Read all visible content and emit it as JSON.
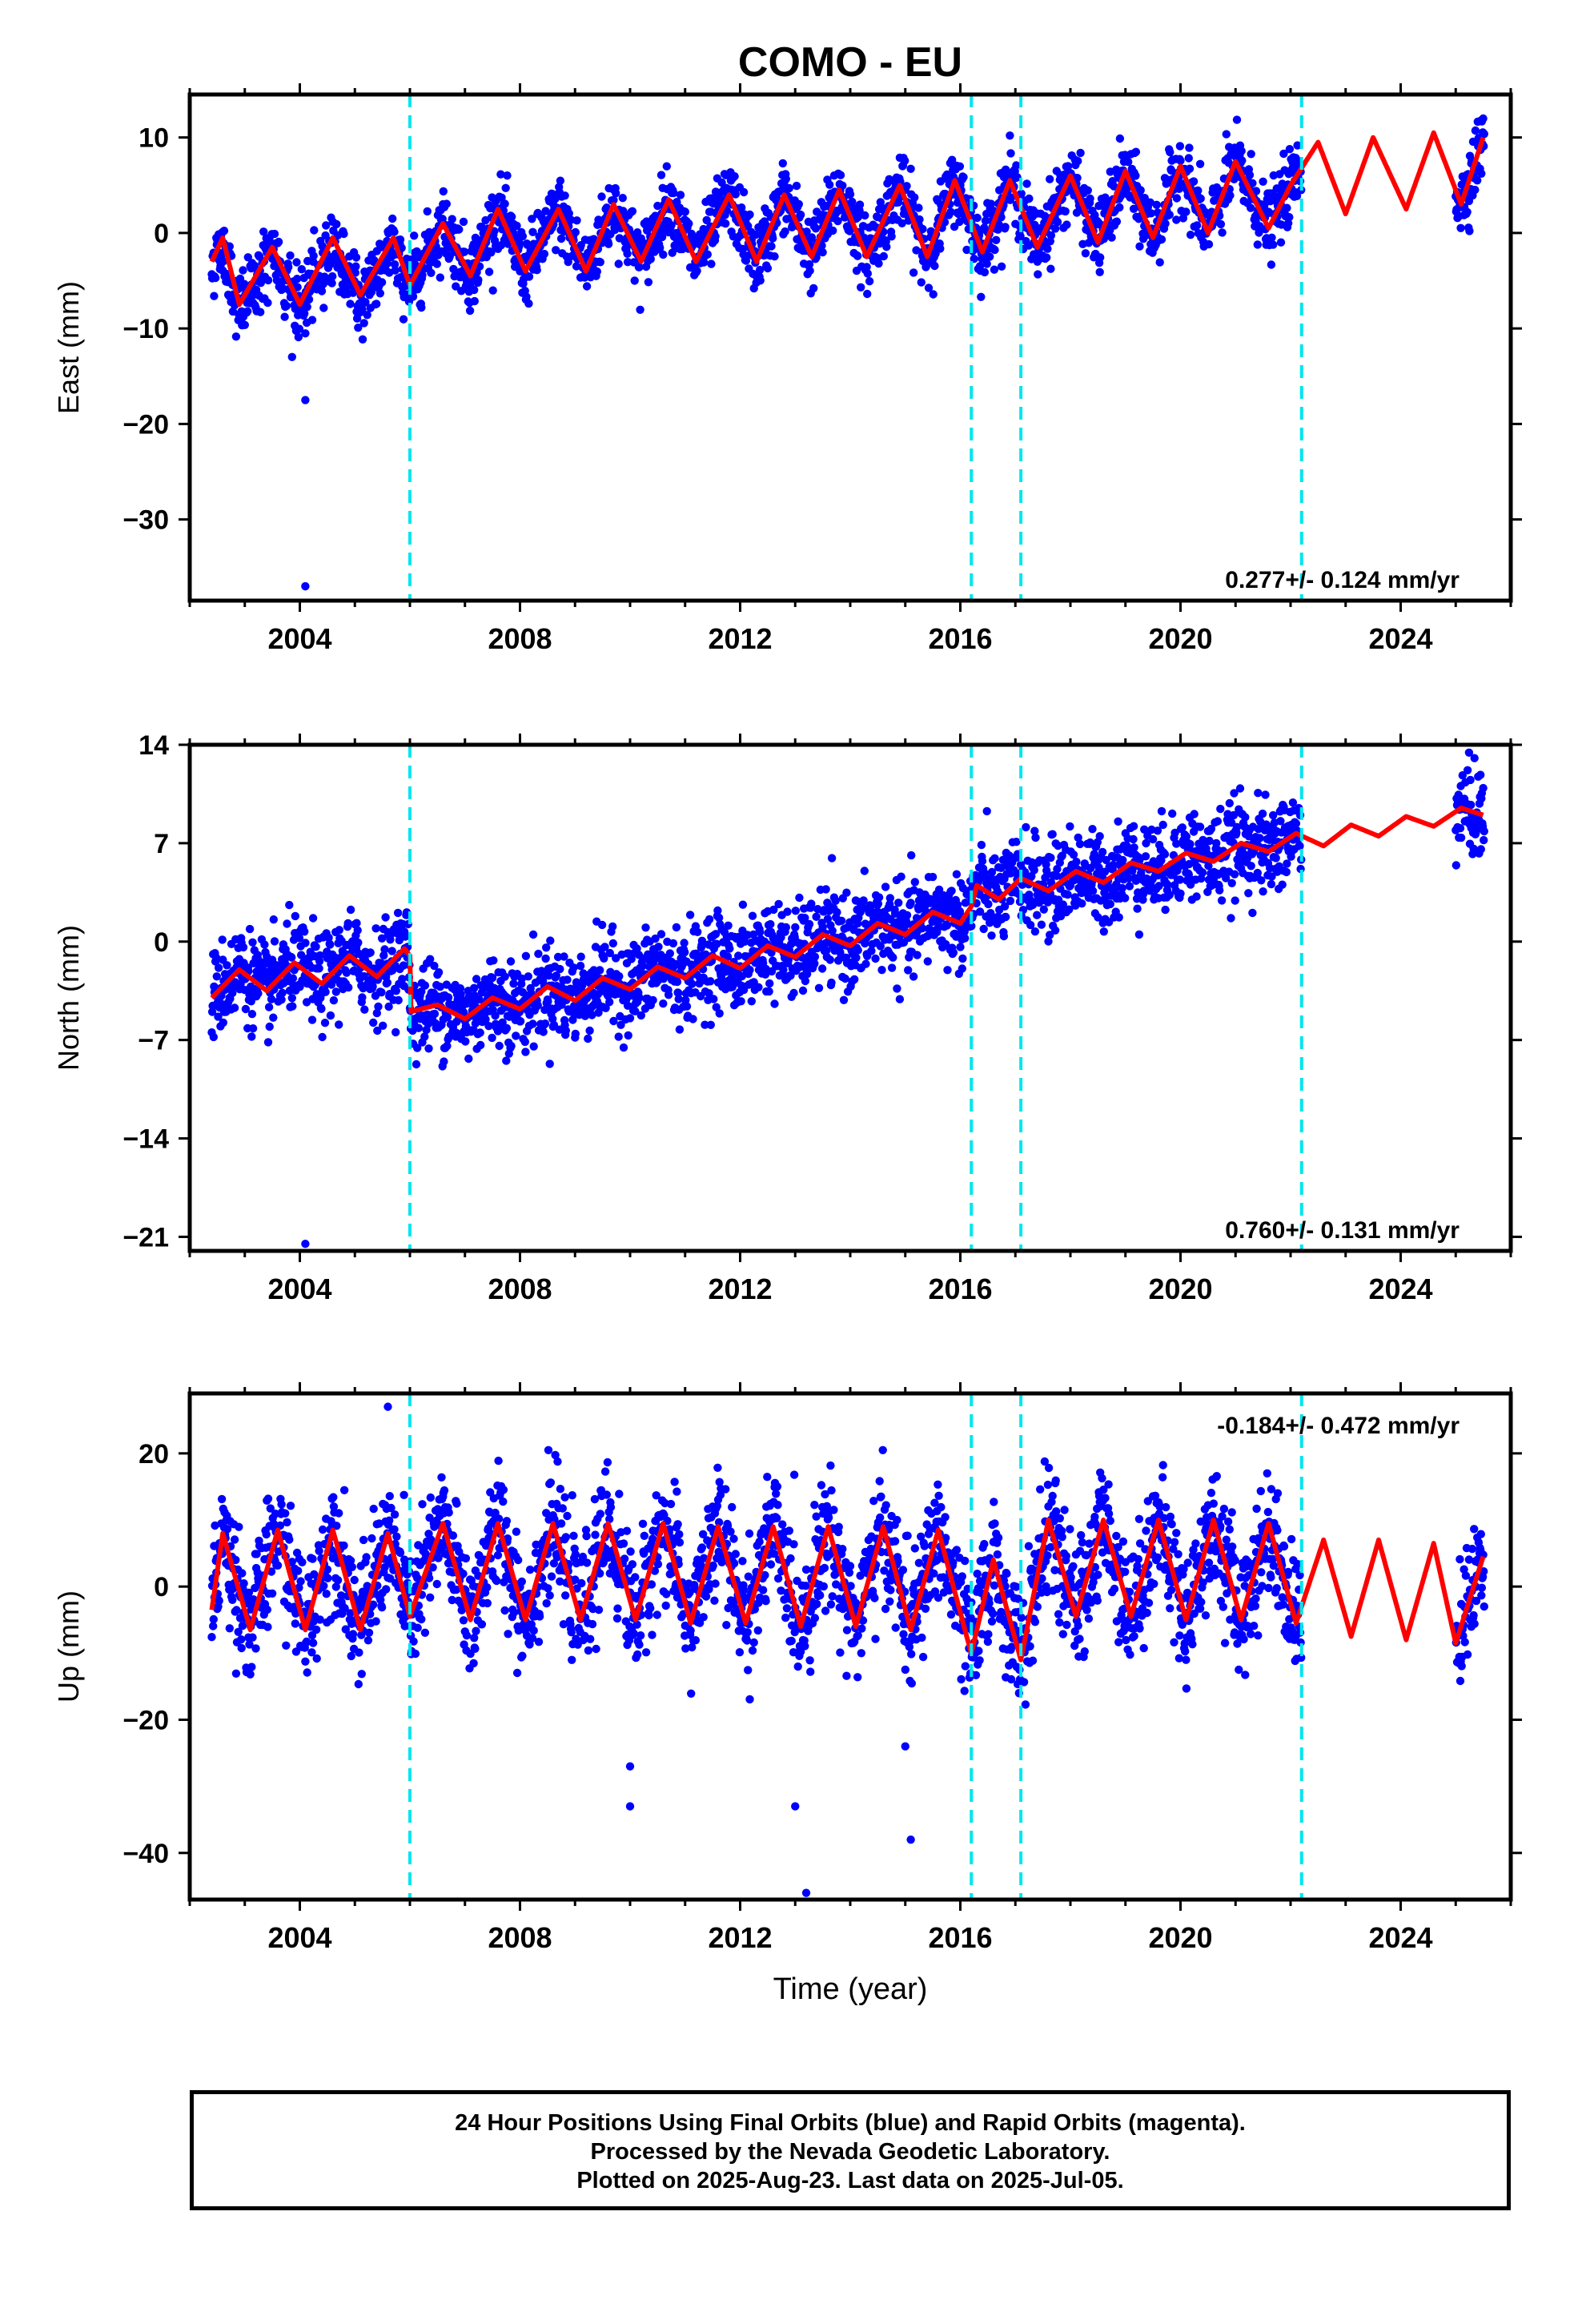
{
  "title": "COMO - EU",
  "colors": {
    "final_points": "#0000ff",
    "model": "#ff0000",
    "breaks": "#00e5ee",
    "frame": "#000000"
  },
  "chart_data": [
    {
      "type": "scatter",
      "component": "east",
      "ylabel": "East (mm)",
      "xlabel": "",
      "xlim": [
        2002.0,
        2026.0
      ],
      "ylim": [
        -38.5,
        14.5
      ],
      "yticks": [
        10,
        0,
        -10,
        -20,
        -30
      ],
      "xticks": [
        2004,
        2008,
        2012,
        2016,
        2020,
        2024
      ],
      "rate_label": "0.277+/- 0.124 mm/yr",
      "breaks": [
        2006.0,
        2016.2,
        2017.1,
        2022.2
      ],
      "series": [
        {
          "role": "points",
          "data_span": [
            2002.4,
            2025.52
          ],
          "gap": [
            2022.2,
            2025.0
          ],
          "trend": {
            "t0": 2002.4,
            "y0": -3.0,
            "rate": 0.277
          },
          "annual_amplitude": 4.0,
          "noise": 1.8,
          "outliers": [
            [
              2004.1,
              -17.5
            ],
            [
              2004.1,
              -37.0
            ]
          ]
        },
        {
          "role": "model",
          "line": [
            [
              2002.4,
              -3.0
            ],
            [
              2002.6,
              -0.5
            ],
            [
              2002.9,
              -7.5
            ],
            [
              2003.5,
              -1.5
            ],
            [
              2004.0,
              -7.5
            ],
            [
              2004.6,
              -0.5
            ],
            [
              2005.1,
              -6.5
            ],
            [
              2005.7,
              -0.5
            ],
            [
              2006.0,
              -5.5
            ],
            [
              2006.6,
              1.0
            ],
            [
              2007.1,
              -4.5
            ],
            [
              2007.6,
              2.5
            ],
            [
              2008.1,
              -4.0
            ],
            [
              2008.7,
              2.5
            ],
            [
              2009.2,
              -4.0
            ],
            [
              2009.7,
              3.0
            ],
            [
              2010.2,
              -3.0
            ],
            [
              2010.7,
              3.5
            ],
            [
              2011.2,
              -3.0
            ],
            [
              2011.8,
              4.0
            ],
            [
              2012.3,
              -3.0
            ],
            [
              2012.8,
              4.0
            ],
            [
              2013.3,
              -2.5
            ],
            [
              2013.8,
              4.5
            ],
            [
              2014.3,
              -2.5
            ],
            [
              2014.9,
              5.0
            ],
            [
              2015.4,
              -2.5
            ],
            [
              2015.9,
              5.5
            ],
            [
              2016.4,
              -2.0
            ],
            [
              2016.9,
              5.5
            ],
            [
              2017.4,
              -1.5
            ],
            [
              2018.0,
              6.0
            ],
            [
              2018.5,
              -1.0
            ],
            [
              2019.0,
              6.5
            ],
            [
              2019.5,
              -0.5
            ],
            [
              2020.0,
              7.0
            ],
            [
              2020.5,
              0.0
            ],
            [
              2021.0,
              7.5
            ],
            [
              2021.6,
              0.5
            ],
            [
              2022.0,
              5.0
            ],
            [
              2022.5,
              9.5
            ],
            [
              2023.0,
              2.0
            ],
            [
              2023.5,
              10.0
            ],
            [
              2024.1,
              2.5
            ],
            [
              2024.6,
              10.5
            ],
            [
              2025.1,
              3.0
            ],
            [
              2025.5,
              10.0
            ]
          ]
        }
      ]
    },
    {
      "type": "scatter",
      "component": "north",
      "ylabel": "North (mm)",
      "xlabel": "",
      "xlim": [
        2002.0,
        2026.0
      ],
      "ylim": [
        -22.0,
        14.0
      ],
      "yticks": [
        14,
        7,
        0,
        -7,
        -14,
        -21
      ],
      "xticks": [
        2004,
        2008,
        2012,
        2016,
        2020,
        2024
      ],
      "rate_label": "0.760+/- 0.131 mm/yr",
      "breaks": [
        2006.0,
        2016.2,
        2017.1,
        2022.2
      ],
      "series": [
        {
          "role": "points",
          "data_span": [
            2002.4,
            2025.52
          ],
          "gap": [
            2022.2,
            2025.0
          ],
          "trend": {
            "t0": 2002.4,
            "y0": -3.0,
            "rate": 0.76
          },
          "annual_amplitude": 1.0,
          "noise": 1.6,
          "outliers": [
            [
              2004.1,
              -21.5
            ]
          ]
        },
        {
          "role": "model",
          "line": [
            [
              2002.4,
              -4.0
            ],
            [
              2002.9,
              -2.0
            ],
            [
              2003.4,
              -3.5
            ],
            [
              2003.9,
              -1.5
            ],
            [
              2004.4,
              -3.0
            ],
            [
              2004.9,
              -1.0
            ],
            [
              2005.4,
              -2.5
            ],
            [
              2005.9,
              -0.5
            ],
            [
              2006.0,
              -1.0
            ],
            [
              2006.0,
              -5.0
            ],
            [
              2006.5,
              -4.5
            ],
            [
              2007.0,
              -5.5
            ],
            [
              2007.5,
              -4.0
            ],
            [
              2008.0,
              -4.8
            ],
            [
              2008.5,
              -3.2
            ],
            [
              2009.0,
              -4.2
            ],
            [
              2009.5,
              -2.6
            ],
            [
              2010.0,
              -3.4
            ],
            [
              2010.5,
              -1.8
            ],
            [
              2011.0,
              -2.6
            ],
            [
              2011.5,
              -1.0
            ],
            [
              2012.0,
              -1.9
            ],
            [
              2012.5,
              -0.3
            ],
            [
              2013.0,
              -1.1
            ],
            [
              2013.5,
              0.5
            ],
            [
              2014.0,
              -0.3
            ],
            [
              2014.5,
              1.3
            ],
            [
              2015.0,
              0.5
            ],
            [
              2015.5,
              2.1
            ],
            [
              2016.0,
              1.3
            ],
            [
              2016.2,
              2.5
            ],
            [
              2016.3,
              4.0
            ],
            [
              2016.7,
              3.0
            ],
            [
              2017.1,
              4.5
            ],
            [
              2017.6,
              3.6
            ],
            [
              2018.1,
              5.0
            ],
            [
              2018.6,
              4.2
            ],
            [
              2019.1,
              5.6
            ],
            [
              2019.6,
              5.0
            ],
            [
              2020.1,
              6.3
            ],
            [
              2020.6,
              5.7
            ],
            [
              2021.1,
              7.0
            ],
            [
              2021.6,
              6.4
            ],
            [
              2022.1,
              7.7
            ],
            [
              2022.6,
              6.8
            ],
            [
              2023.1,
              8.3
            ],
            [
              2023.6,
              7.5
            ],
            [
              2024.1,
              8.9
            ],
            [
              2024.6,
              8.2
            ],
            [
              2025.1,
              9.5
            ],
            [
              2025.5,
              9.0
            ]
          ]
        }
      ]
    },
    {
      "type": "scatter",
      "component": "up",
      "ylabel": "Up (mm)",
      "xlabel": "Time (year)",
      "xlim": [
        2002.0,
        2026.0
      ],
      "ylim": [
        -47.0,
        29.0
      ],
      "yticks": [
        20,
        0,
        -20,
        -40
      ],
      "xticks": [
        2004,
        2008,
        2012,
        2016,
        2020,
        2024
      ],
      "rate_label": "-0.184+/- 0.472 mm/yr",
      "breaks": [
        2006.0,
        2016.2,
        2017.1,
        2022.2
      ],
      "series": [
        {
          "role": "points",
          "data_span": [
            2002.4,
            2025.52
          ],
          "gap": [
            2022.2,
            2025.0
          ],
          "trend": {
            "t0": 2002.4,
            "y0": 1.0,
            "rate": -0.184
          },
          "annual_amplitude": 8.0,
          "noise": 4.5,
          "outliers": [
            [
              2005.6,
              27.0
            ],
            [
              2010.0,
              -27.0
            ],
            [
              2010.0,
              -33.0
            ],
            [
              2013.0,
              -33.0
            ],
            [
              2013.2,
              -46.0
            ],
            [
              2015.1,
              -38.0
            ],
            [
              2015.0,
              -24.0
            ]
          ]
        },
        {
          "role": "model",
          "line": [
            [
              2002.4,
              -3.5
            ],
            [
              2002.6,
              8.0
            ],
            [
              2003.1,
              -6.5
            ],
            [
              2003.6,
              8.5
            ],
            [
              2004.1,
              -6.5
            ],
            [
              2004.6,
              8.5
            ],
            [
              2005.1,
              -6.5
            ],
            [
              2005.6,
              8.0
            ],
            [
              2006.0,
              -4.5
            ],
            [
              2006.6,
              9.5
            ],
            [
              2007.1,
              -5.0
            ],
            [
              2007.6,
              9.5
            ],
            [
              2008.1,
              -5.0
            ],
            [
              2008.6,
              9.5
            ],
            [
              2009.1,
              -5.0
            ],
            [
              2009.6,
              9.5
            ],
            [
              2010.1,
              -5.0
            ],
            [
              2010.6,
              9.5
            ],
            [
              2011.1,
              -5.5
            ],
            [
              2011.6,
              9.0
            ],
            [
              2012.1,
              -5.5
            ],
            [
              2012.6,
              9.0
            ],
            [
              2013.1,
              -6.0
            ],
            [
              2013.6,
              9.0
            ],
            [
              2014.1,
              -6.0
            ],
            [
              2014.6,
              9.0
            ],
            [
              2015.1,
              -6.5
            ],
            [
              2015.6,
              8.5
            ],
            [
              2016.1,
              -7.0
            ],
            [
              2016.2,
              -10.0
            ],
            [
              2016.6,
              4.0
            ],
            [
              2017.1,
              -11.0
            ],
            [
              2017.6,
              10.0
            ],
            [
              2018.1,
              -4.5
            ],
            [
              2018.6,
              10.0
            ],
            [
              2019.1,
              -4.5
            ],
            [
              2019.6,
              10.0
            ],
            [
              2020.1,
              -5.0
            ],
            [
              2020.6,
              10.0
            ],
            [
              2021.1,
              -5.0
            ],
            [
              2021.6,
              9.5
            ],
            [
              2022.1,
              -5.5
            ],
            [
              2022.6,
              7.0
            ],
            [
              2023.1,
              -7.5
            ],
            [
              2023.6,
              7.0
            ],
            [
              2024.1,
              -8.0
            ],
            [
              2024.6,
              6.5
            ],
            [
              2025.0,
              -8.5
            ],
            [
              2025.5,
              4.5
            ]
          ]
        }
      ]
    }
  ],
  "footer": {
    "line1": "24 Hour Positions Using Final Orbits (blue) and Rapid Orbits (magenta).",
    "line2": "Processed by the Nevada Geodetic Laboratory.",
    "line3": "Plotted on 2025-Aug-23. Last data on 2025-Jul-05."
  }
}
